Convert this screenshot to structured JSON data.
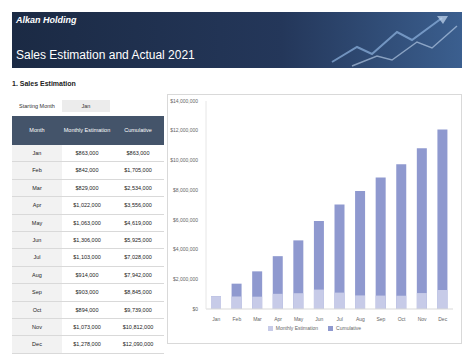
{
  "header": {
    "company": "Alkan Holding",
    "title": "Sales Estimation and Actual 2021"
  },
  "section": "1. Sales Estimation",
  "table": {
    "starting_month_label": "Starting Month",
    "starting_month": "Jan",
    "columns": [
      "Month",
      "Monthly Estimation",
      "Cumulative"
    ],
    "rows": [
      [
        "Jan",
        "$863,000",
        "$863,000"
      ],
      [
        "Feb",
        "$842,000",
        "$1,705,000"
      ],
      [
        "Mar",
        "$829,000",
        "$2,534,000"
      ],
      [
        "Apr",
        "$1,022,000",
        "$3,556,000"
      ],
      [
        "May",
        "$1,063,000",
        "$4,619,000"
      ],
      [
        "Jun",
        "$1,306,000",
        "$5,925,000"
      ],
      [
        "Jul",
        "$1,103,000",
        "$7,028,000"
      ],
      [
        "Aug",
        "$914,000",
        "$7,942,000"
      ],
      [
        "Sep",
        "$903,000",
        "$8,845,000"
      ],
      [
        "Oct",
        "$894,000",
        "$9,739,000"
      ],
      [
        "Nov",
        "$1,073,000",
        "$10,812,000"
      ],
      [
        "Dec",
        "$1,278,000",
        "$12,090,000"
      ]
    ]
  },
  "chart_data": {
    "type": "bar",
    "categories": [
      "Jan",
      "Feb",
      "Mar",
      "Apr",
      "May",
      "Jun",
      "Jul",
      "Aug",
      "Sep",
      "Oct",
      "Nov",
      "Dec"
    ],
    "series": [
      {
        "name": "Monthly Estimation",
        "color": "#c7cbe8",
        "values": [
          863000,
          842000,
          829000,
          1022000,
          1063000,
          1306000,
          1103000,
          914000,
          903000,
          894000,
          1073000,
          1278000
        ]
      },
      {
        "name": "Cumulative",
        "color": "#8f99cf",
        "values": [
          863000,
          1705000,
          2534000,
          3556000,
          4619000,
          5925000,
          7028000,
          7942000,
          8845000,
          9739000,
          10812000,
          12090000
        ]
      }
    ],
    "ylim": [
      0,
      14000000
    ],
    "yticks": [
      {
        "value": 0,
        "label": "$0"
      },
      {
        "value": 2000000,
        "label": "$2,000,000"
      },
      {
        "value": 4000000,
        "label": "$4,000,000"
      },
      {
        "value": 6000000,
        "label": "$6,000,000"
      },
      {
        "value": 8000000,
        "label": "$8,000,000"
      },
      {
        "value": 10000000,
        "label": "$10,000,000"
      },
      {
        "value": 12000000,
        "label": "$12,000,000"
      },
      {
        "value": 14000000,
        "label": "$14,000,000"
      }
    ],
    "grid": false,
    "legend": "bottom"
  }
}
